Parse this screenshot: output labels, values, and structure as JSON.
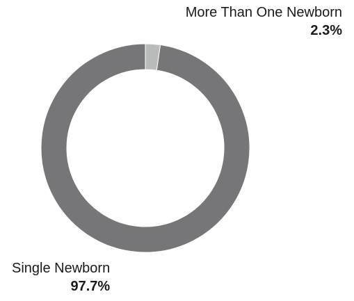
{
  "chart_data": {
    "type": "pie",
    "donut": true,
    "slices": [
      {
        "label": "More Than One Newborn",
        "value": 2.3,
        "value_label": "2.3%",
        "color": "#b9baba"
      },
      {
        "label": "Single Newborn",
        "value": 97.7,
        "value_label": "97.7%",
        "color": "#767679"
      }
    ]
  }
}
